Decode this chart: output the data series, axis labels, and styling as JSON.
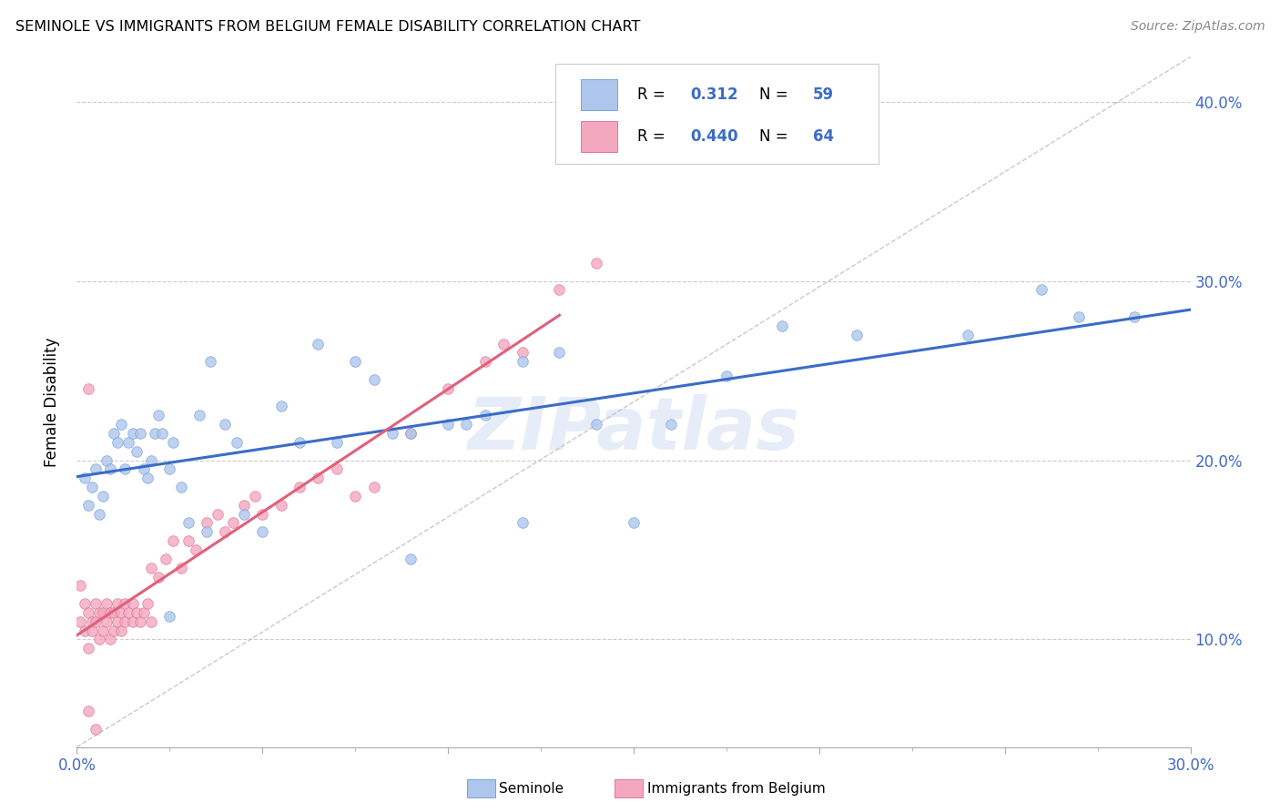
{
  "title": "SEMINOLE VS IMMIGRANTS FROM BELGIUM FEMALE DISABILITY CORRELATION CHART",
  "source": "Source: ZipAtlas.com",
  "ylabel": "Female Disability",
  "watermark": "ZIPatlas",
  "xlim": [
    0.0,
    0.3
  ],
  "ylim": [
    0.04,
    0.425
  ],
  "yticks_right": [
    0.1,
    0.2,
    0.3,
    0.4
  ],
  "color_blue_fill": "#AEC6ED",
  "color_blue_edge": "#7BA3D8",
  "color_pink_fill": "#F4A8C0",
  "color_pink_edge": "#E07898",
  "color_blue_line": "#3A6CC8",
  "color_pink_line": "#E0607A",
  "color_diag": "#BBBBBB",
  "seminole_x": [
    0.002,
    0.003,
    0.004,
    0.005,
    0.006,
    0.007,
    0.008,
    0.009,
    0.01,
    0.011,
    0.012,
    0.013,
    0.014,
    0.015,
    0.016,
    0.017,
    0.018,
    0.019,
    0.02,
    0.021,
    0.022,
    0.023,
    0.025,
    0.026,
    0.028,
    0.03,
    0.033,
    0.036,
    0.04,
    0.043,
    0.05,
    0.055,
    0.06,
    0.065,
    0.07,
    0.075,
    0.08,
    0.085,
    0.09,
    0.1,
    0.105,
    0.11,
    0.12,
    0.13,
    0.14,
    0.15,
    0.16,
    0.175,
    0.19,
    0.21,
    0.24,
    0.26,
    0.27,
    0.285,
    0.12,
    0.09,
    0.045,
    0.035,
    0.025
  ],
  "seminole_y": [
    0.19,
    0.175,
    0.185,
    0.195,
    0.17,
    0.18,
    0.2,
    0.195,
    0.215,
    0.21,
    0.22,
    0.195,
    0.21,
    0.215,
    0.205,
    0.215,
    0.195,
    0.19,
    0.2,
    0.215,
    0.225,
    0.215,
    0.195,
    0.21,
    0.185,
    0.165,
    0.225,
    0.255,
    0.22,
    0.21,
    0.16,
    0.23,
    0.21,
    0.265,
    0.21,
    0.255,
    0.245,
    0.215,
    0.145,
    0.22,
    0.22,
    0.225,
    0.255,
    0.26,
    0.22,
    0.165,
    0.22,
    0.247,
    0.275,
    0.27,
    0.27,
    0.295,
    0.28,
    0.28,
    0.165,
    0.215,
    0.17,
    0.16,
    0.113
  ],
  "belgium_x": [
    0.001,
    0.001,
    0.002,
    0.002,
    0.003,
    0.003,
    0.004,
    0.004,
    0.005,
    0.005,
    0.006,
    0.006,
    0.007,
    0.007,
    0.008,
    0.008,
    0.009,
    0.009,
    0.01,
    0.01,
    0.011,
    0.011,
    0.012,
    0.012,
    0.013,
    0.013,
    0.014,
    0.015,
    0.015,
    0.016,
    0.017,
    0.018,
    0.019,
    0.02,
    0.02,
    0.022,
    0.024,
    0.026,
    0.028,
    0.03,
    0.032,
    0.035,
    0.038,
    0.04,
    0.042,
    0.045,
    0.048,
    0.05,
    0.055,
    0.06,
    0.065,
    0.07,
    0.075,
    0.08,
    0.09,
    0.1,
    0.11,
    0.115,
    0.12,
    0.13,
    0.14,
    0.003,
    0.005,
    0.003
  ],
  "belgium_y": [
    0.13,
    0.11,
    0.12,
    0.105,
    0.115,
    0.095,
    0.11,
    0.105,
    0.12,
    0.11,
    0.115,
    0.1,
    0.115,
    0.105,
    0.12,
    0.11,
    0.115,
    0.1,
    0.115,
    0.105,
    0.12,
    0.11,
    0.115,
    0.105,
    0.12,
    0.11,
    0.115,
    0.12,
    0.11,
    0.115,
    0.11,
    0.115,
    0.12,
    0.14,
    0.11,
    0.135,
    0.145,
    0.155,
    0.14,
    0.155,
    0.15,
    0.165,
    0.17,
    0.16,
    0.165,
    0.175,
    0.18,
    0.17,
    0.175,
    0.185,
    0.19,
    0.195,
    0.18,
    0.185,
    0.215,
    0.24,
    0.255,
    0.265,
    0.26,
    0.295,
    0.31,
    0.24,
    0.05,
    0.06
  ]
}
